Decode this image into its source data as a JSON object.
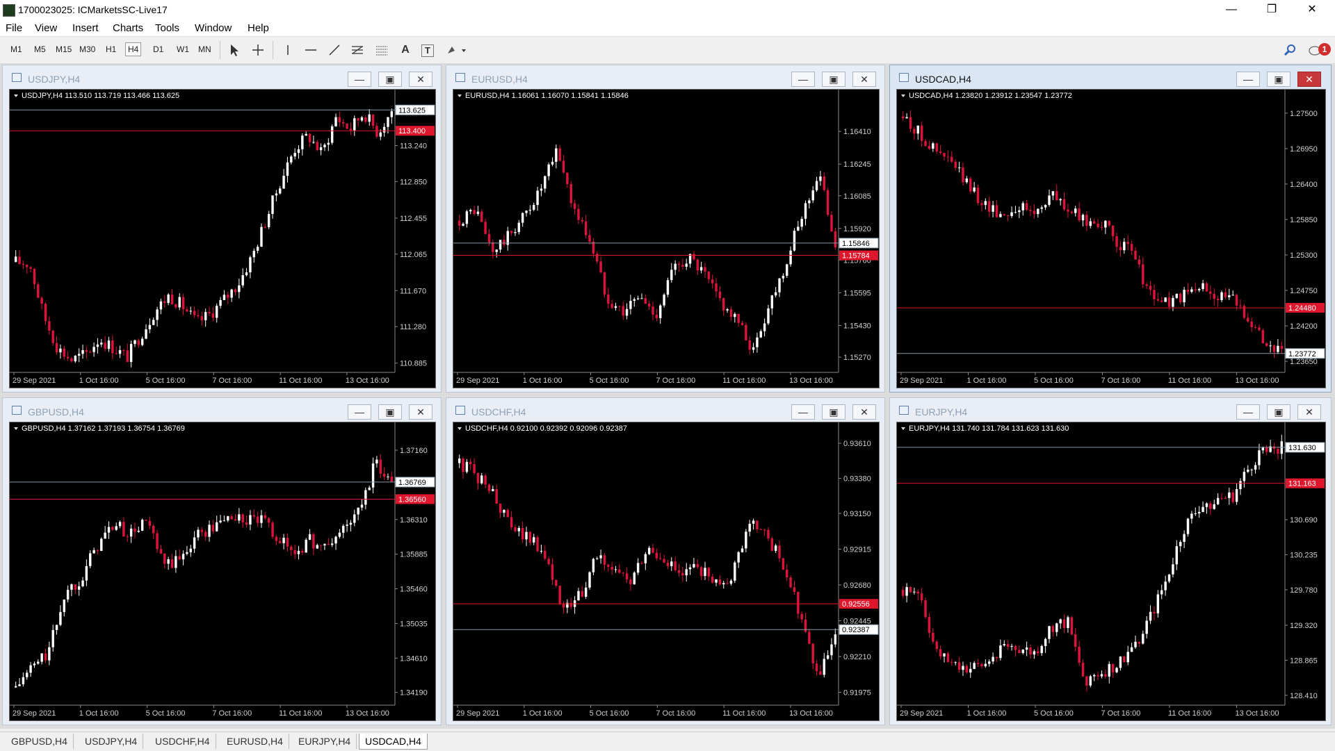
{
  "app": {
    "title": "1700023025: ICMarketsSC-Live17",
    "window_controls": {
      "minimize": "—",
      "restore": "❐",
      "close": "✕"
    }
  },
  "menu": [
    "File",
    "View",
    "Insert",
    "Charts",
    "Tools",
    "Window",
    "Help"
  ],
  "toolbar": {
    "timeframes": [
      "M1",
      "M5",
      "M15",
      "M30",
      "H1",
      "H4",
      "D1",
      "W1",
      "MN"
    ],
    "active_timeframe": "H4",
    "tools": [
      "cursor-icon",
      "crosshair-icon",
      "vertical-line-icon",
      "horizontal-line-icon",
      "trendline-icon",
      "fibonacci-icon",
      "channel-icon",
      "text-icon",
      "text-label-icon",
      "shapes-dropdown-icon"
    ],
    "tool_glyphs": {
      "text": "A",
      "text_label": "T"
    },
    "alert_count": "1"
  },
  "colors": {
    "bull": "#ffffff",
    "bear": "#dc143c",
    "chart_bg": "#000000",
    "bid_line": "#8a99a6",
    "order_line": "#e0162c"
  },
  "charts": [
    {
      "name": "USDJPY,H4",
      "active": false,
      "info": "USDJPY,H4  113.510 113.719 113.466 113.625",
      "price_labels": [
        "113.240",
        "112.850",
        "112.455",
        "112.065",
        "111.670",
        "111.280",
        "110.885"
      ],
      "time_labels": [
        "29 Sep 2021",
        "1 Oct 16:00",
        "5 Oct 16:00",
        "7 Oct 16:00",
        "11 Oct 16:00",
        "13 Oct 16:00"
      ],
      "bid": "113.625",
      "order": "113.400"
    },
    {
      "name": "EURUSD,H4",
      "active": false,
      "info": "EURUSD,H4  1.16061 1.16070 1.15841 1.15846",
      "price_labels": [
        "1.16410",
        "1.16245",
        "1.16085",
        "1.15920",
        "1.15760",
        "1.15595",
        "1.15430",
        "1.15270"
      ],
      "time_labels": [
        "29 Sep 2021",
        "1 Oct 16:00",
        "5 Oct 16:00",
        "7 Oct 16:00",
        "11 Oct 16:00",
        "13 Oct 16:00"
      ],
      "bid": "1.15846",
      "order": "1.15784"
    },
    {
      "name": "USDCAD,H4",
      "active": true,
      "info": "USDCAD,H4  1.23820 1.23912 1.23547 1.23772",
      "price_labels": [
        "1.27500",
        "1.26950",
        "1.26400",
        "1.25850",
        "1.25300",
        "1.24750",
        "1.24200",
        "1.23650"
      ],
      "time_labels": [
        "29 Sep 2021",
        "1 Oct 16:00",
        "5 Oct 16:00",
        "7 Oct 16:00",
        "11 Oct 16:00",
        "13 Oct 16:00"
      ],
      "bid": "1.23772",
      "order": "1.24480"
    },
    {
      "name": "GBPUSD,H4",
      "active": false,
      "info": "GBPUSD,H4  1.37162 1.37193 1.36754 1.36769",
      "price_labels": [
        "1.37160",
        "1.36310",
        "1.35885",
        "1.35460",
        "1.35035",
        "1.34610",
        "1.34190"
      ],
      "time_labels": [
        "29 Sep 2021",
        "1 Oct 16:00",
        "5 Oct 16:00",
        "7 Oct 16:00",
        "11 Oct 16:00",
        "13 Oct 16:00"
      ],
      "bid": "1.36769",
      "order": "1.36560"
    },
    {
      "name": "USDCHF,H4",
      "active": false,
      "info": "USDCHF,H4  0.92100 0.92392 0.92096 0.92387",
      "price_labels": [
        "0.93610",
        "0.93380",
        "0.93150",
        "0.92915",
        "0.92680",
        "0.92445",
        "0.92210",
        "0.91975"
      ],
      "time_labels": [
        "29 Sep 2021",
        "1 Oct 16:00",
        "5 Oct 16:00",
        "7 Oct 16:00",
        "11 Oct 16:00",
        "13 Oct 16:00"
      ],
      "bid": "0.92387",
      "order": "0.92556"
    },
    {
      "name": "EURJPY,H4",
      "active": false,
      "info": "EURJPY,H4  131.740 131.784 131.623 131.630",
      "price_labels": [
        "130.690",
        "130.235",
        "129.780",
        "129.320",
        "128.865",
        "128.410"
      ],
      "time_labels": [
        "29 Sep 2021",
        "1 Oct 16:00",
        "5 Oct 16:00",
        "7 Oct 16:00",
        "11 Oct 16:00",
        "13 Oct 16:00"
      ],
      "bid": "131.630",
      "order": "131.163"
    }
  ],
  "chart_data": [
    {
      "type": "candlestick",
      "title": "USDJPY,H4",
      "ylim": [
        110.8,
        113.8
      ],
      "bid": 113.625,
      "order_level": 113.4,
      "close_path": [
        111.98,
        111.96,
        111.4,
        111.05,
        110.92,
        110.98,
        111.15,
        111.05,
        110.95,
        111.2,
        111.45,
        111.62,
        111.5,
        111.32,
        111.42,
        111.58,
        111.75,
        112.05,
        112.45,
        112.85,
        113.2,
        113.35,
        113.15,
        113.55,
        113.42,
        113.6,
        113.38,
        113.62
      ]
    },
    {
      "type": "candlestick",
      "title": "EURUSD,H4",
      "ylim": [
        1.152,
        1.166
      ],
      "bid": 1.15846,
      "order_level": 1.15784,
      "close_path": [
        1.1596,
        1.1602,
        1.158,
        1.1588,
        1.1599,
        1.1612,
        1.1632,
        1.1602,
        1.1586,
        1.1558,
        1.155,
        1.1558,
        1.1548,
        1.157,
        1.1578,
        1.1568,
        1.1555,
        1.1545,
        1.153,
        1.1555,
        1.1575,
        1.16,
        1.162,
        1.1585
      ]
    },
    {
      "type": "candlestick",
      "title": "USDCAD,H4",
      "ylim": [
        1.235,
        1.278
      ],
      "bid": 1.23772,
      "order_level": 1.2448,
      "close_path": [
        1.2745,
        1.2718,
        1.269,
        1.2672,
        1.2635,
        1.2608,
        1.2592,
        1.2605,
        1.2595,
        1.2625,
        1.26,
        1.2582,
        1.2582,
        1.255,
        1.253,
        1.2468,
        1.2455,
        1.2465,
        1.248,
        1.247,
        1.246,
        1.2435,
        1.2395,
        1.2377
      ]
    },
    {
      "type": "candlestick",
      "title": "GBPUSD,H4",
      "ylim": [
        1.3405,
        1.3745
      ],
      "bid": 1.36769,
      "order_level": 1.3656,
      "close_path": [
        1.3425,
        1.345,
        1.3468,
        1.354,
        1.356,
        1.36,
        1.3625,
        1.3612,
        1.363,
        1.3575,
        1.358,
        1.3612,
        1.362,
        1.3635,
        1.363,
        1.363,
        1.361,
        1.359,
        1.3605,
        1.3595,
        1.362,
        1.364,
        1.37,
        1.3677
      ]
    },
    {
      "type": "candlestick",
      "title": "USDCHF,H4",
      "ylim": [
        0.919,
        0.9372
      ],
      "bid": 0.92387,
      "order_level": 0.92556,
      "close_path": [
        0.9348,
        0.934,
        0.9328,
        0.9305,
        0.93,
        0.929,
        0.925,
        0.926,
        0.9285,
        0.928,
        0.9268,
        0.929,
        0.9285,
        0.9272,
        0.928,
        0.9268,
        0.9275,
        0.9312,
        0.93,
        0.928,
        0.9245,
        0.9205,
        0.9238
      ]
    },
    {
      "type": "candlestick",
      "title": "EURJPY,H4",
      "ylim": [
        128.3,
        131.9
      ],
      "bid": 131.63,
      "order_level": 131.163,
      "close_path": [
        129.78,
        129.76,
        128.95,
        128.82,
        128.75,
        128.8,
        129.05,
        129.02,
        128.95,
        129.3,
        129.35,
        128.6,
        128.7,
        128.8,
        129.05,
        129.4,
        129.9,
        130.55,
        130.85,
        130.95,
        130.98,
        131.35,
        131.65,
        131.63
      ]
    }
  ],
  "tabs": [
    "GBPUSD,H4",
    "USDJPY,H4",
    "USDCHF,H4",
    "EURUSD,H4",
    "EURJPY,H4",
    "USDCAD,H4"
  ],
  "active_tab": "USDCAD,H4"
}
